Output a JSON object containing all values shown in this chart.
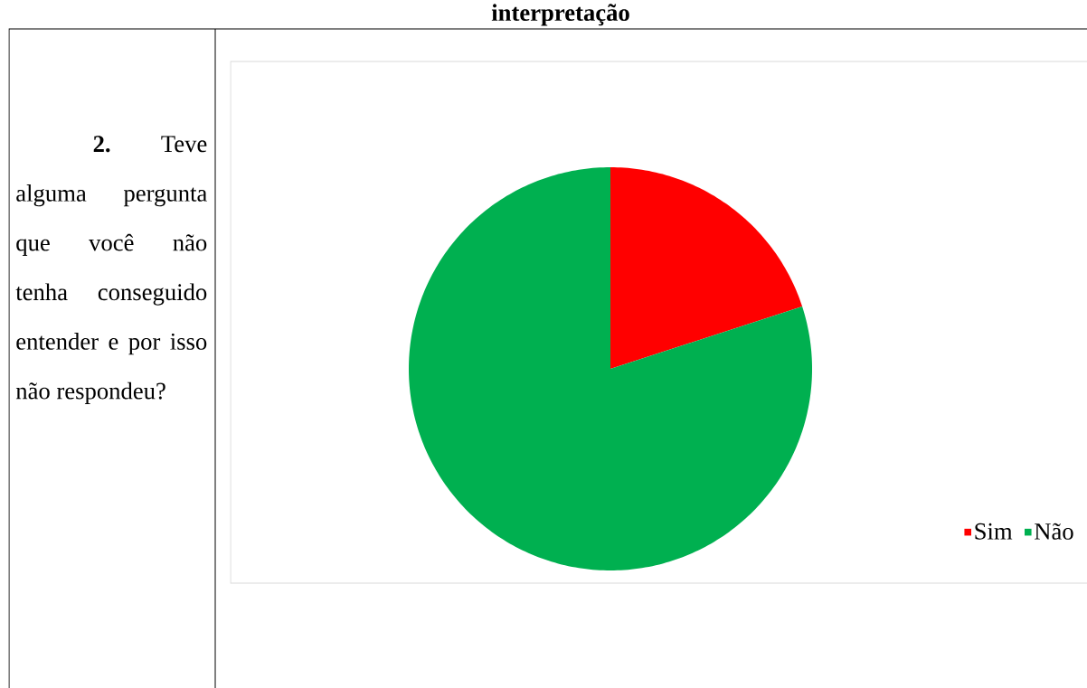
{
  "chart_data": {
    "type": "pie",
    "categories": [
      "Sim",
      "Não"
    ],
    "values": [
      20,
      80
    ],
    "colors": [
      "#ff0000",
      "#00b050"
    ],
    "legend": "bottom right",
    "annotations": [
      "interpretação",
      "**2.** Teve alguma pergunta que você não tenha conseguido entender e por isso não respondeu?"
    ]
  }
}
